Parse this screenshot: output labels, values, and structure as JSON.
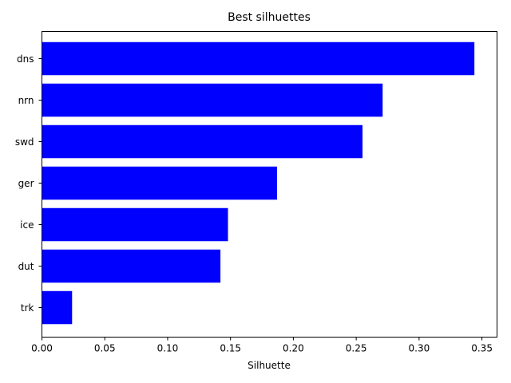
{
  "chart_data": {
    "type": "bar",
    "orientation": "horizontal",
    "title": "Best silhuettes",
    "xlabel": "Silhuette",
    "ylabel": "",
    "categories": [
      "dns",
      "nrn",
      "swd",
      "ger",
      "ice",
      "dut",
      "trk"
    ],
    "values": [
      0.344,
      0.271,
      0.255,
      0.187,
      0.148,
      0.142,
      0.024
    ],
    "xlim": [
      0,
      0.362
    ],
    "xticks": [
      "0.00",
      "0.05",
      "0.10",
      "0.15",
      "0.20",
      "0.25",
      "0.30",
      "0.35"
    ],
    "bar_color": "#0000ff",
    "grid": false,
    "legend": "none"
  }
}
